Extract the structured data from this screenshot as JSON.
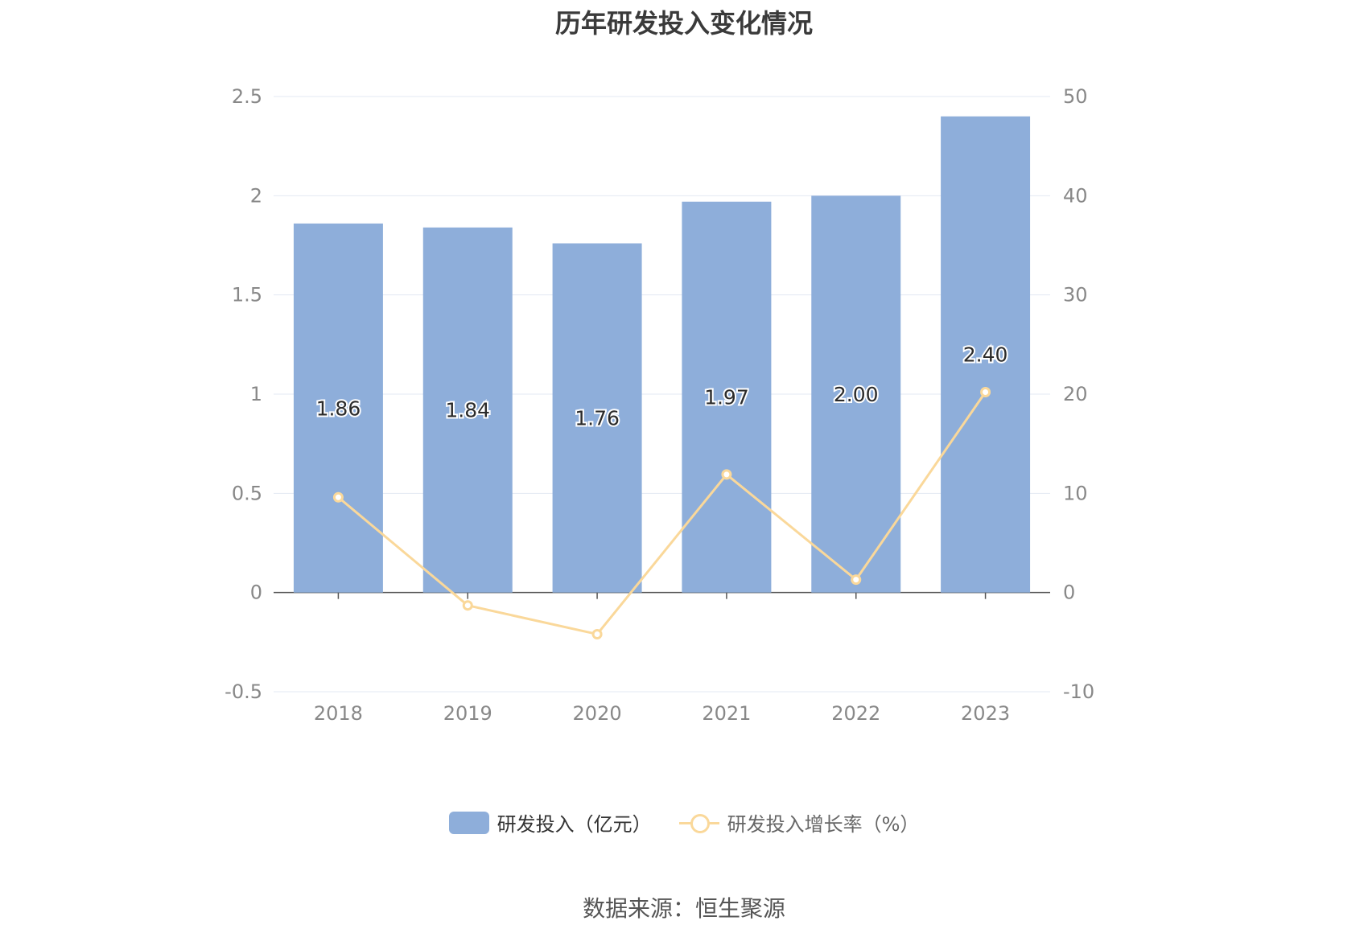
{
  "title": "历年研发投入变化情况",
  "source": "数据来源：恒生聚源",
  "colors": {
    "bar": "#8eaeda",
    "line": "#fad89a",
    "grid": "#e3e8f3",
    "axis_text": "#888888",
    "label": "#2b2b2b"
  },
  "chart_data": {
    "type": "bar",
    "categories": [
      "2018",
      "2019",
      "2020",
      "2021",
      "2022",
      "2023"
    ],
    "series": [
      {
        "name": "研发投入（亿元）",
        "type": "bar",
        "axis": "left",
        "values": [
          1.86,
          1.84,
          1.76,
          1.97,
          2.0,
          2.4
        ],
        "labels": [
          "1.86",
          "1.84",
          "1.76",
          "1.97",
          "2.00",
          "2.40"
        ]
      },
      {
        "name": "研发投入增长率（%）",
        "type": "line",
        "axis": "right",
        "values": [
          9.6,
          -1.3,
          -4.2,
          11.9,
          1.3,
          20.2
        ]
      }
    ],
    "left_axis": {
      "min": -0.5,
      "max": 2.5,
      "ticks": [
        "-0.5",
        "0",
        "0.5",
        "1",
        "1.5",
        "2",
        "2.5"
      ]
    },
    "right_axis": {
      "min": -10,
      "max": 50,
      "ticks": [
        "-10",
        "0",
        "10",
        "20",
        "30",
        "40",
        "50"
      ]
    },
    "grid": true,
    "legend_position": "bottom"
  }
}
